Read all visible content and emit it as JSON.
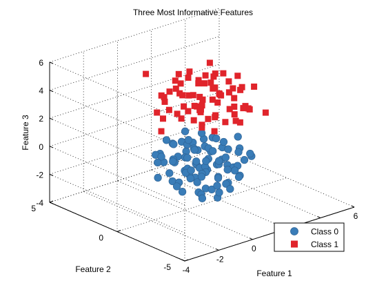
{
  "chart_data": {
    "type": "scatter",
    "title": "Three Most Informative Features",
    "xlabel": "Feature 1",
    "ylabel": "Feature 2",
    "zlabel": "Feature 3",
    "xlim": [
      -4,
      6
    ],
    "ylim": [
      -5,
      5
    ],
    "zlim": [
      -4,
      6
    ],
    "x_ticks": [
      "-4",
      "-2",
      "0",
      "2",
      "4",
      "6"
    ],
    "y_ticks": [
      "-5",
      "0",
      "5"
    ],
    "z_ticks": [
      "-4",
      "-2",
      "0",
      "2",
      "4",
      "6"
    ],
    "visible_x_tick_labels": [
      "-4",
      "-2",
      "0",
      "6"
    ],
    "grid": true,
    "legend_position": "bottom-right",
    "series": [
      {
        "name": "Class 0",
        "marker": "circle",
        "color": "#3a7db8",
        "points": [
          [
            1.2,
            0.8,
            -0.5
          ],
          [
            0.5,
            1.5,
            -1.2
          ],
          [
            2.0,
            -0.5,
            -0.8
          ],
          [
            1.6,
            1.2,
            -1.8
          ],
          [
            0.2,
            0.2,
            -1.5
          ],
          [
            2.6,
            0.4,
            -0.3
          ],
          [
            1.0,
            -1.2,
            -1.6
          ],
          [
            1.8,
            2.1,
            -0.9
          ],
          [
            0.8,
            0.6,
            -2.3
          ],
          [
            2.3,
            -1.0,
            -1.3
          ],
          [
            -0.3,
            1.8,
            -0.7
          ],
          [
            1.4,
            -0.3,
            -0.2
          ],
          [
            3.0,
            1.0,
            -1.1
          ],
          [
            0.6,
            -0.8,
            -0.4
          ],
          [
            1.9,
            0.9,
            -2.0
          ],
          [
            1.1,
            1.9,
            -1.4
          ],
          [
            2.7,
            -0.2,
            -1.9
          ],
          [
            0.0,
            0.9,
            -0.9
          ],
          [
            1.5,
            -1.8,
            -1.0
          ],
          [
            2.2,
            0.3,
            -2.6
          ],
          [
            0.9,
            2.5,
            -0.4
          ],
          [
            1.3,
            0.1,
            -3.0
          ],
          [
            2.9,
            1.6,
            -0.6
          ],
          [
            0.4,
            -0.4,
            -2.0
          ],
          [
            1.7,
            -0.9,
            -2.4
          ],
          [
            2.5,
            2.2,
            -1.6
          ],
          [
            -0.6,
            0.4,
            -1.3
          ],
          [
            1.0,
            1.0,
            0.2
          ],
          [
            3.3,
            0.1,
            -0.9
          ],
          [
            0.7,
            -1.5,
            -1.9
          ],
          [
            2.1,
            1.4,
            0.1
          ],
          [
            1.5,
            2.8,
            -1.0
          ],
          [
            -0.2,
            -0.7,
            -0.8
          ],
          [
            2.8,
            -1.3,
            -0.5
          ],
          [
            1.2,
            0.5,
            -3.4
          ],
          [
            0.3,
            1.3,
            -2.6
          ],
          [
            2.4,
            0.7,
            -0.1
          ],
          [
            1.8,
            -0.1,
            -1.4
          ],
          [
            0.9,
            0.3,
            -1.0
          ],
          [
            1.6,
            1.7,
            -2.8
          ],
          [
            2.0,
            2.5,
            -0.2
          ],
          [
            -0.8,
            1.0,
            -1.8
          ],
          [
            3.5,
            1.2,
            -1.5
          ],
          [
            1.1,
            -0.6,
            -2.7
          ],
          [
            0.5,
            2.2,
            -1.7
          ],
          [
            2.6,
            -0.8,
            -2.2
          ],
          [
            1.4,
            1.1,
            -0.6
          ],
          [
            0.1,
            -1.1,
            -1.2
          ],
          [
            2.2,
            1.9,
            -2.4
          ],
          [
            1.7,
            0.4,
            -0.4
          ],
          [
            0.8,
            -0.2,
            -3.1
          ],
          [
            2.9,
            0.5,
            -2.1
          ],
          [
            1.3,
            2.4,
            -2.1
          ],
          [
            -0.4,
            0.1,
            -2.2
          ],
          [
            1.9,
            -1.6,
            -1.7
          ],
          [
            2.4,
            1.1,
            -1.2
          ],
          [
            0.6,
            1.6,
            -0.2
          ],
          [
            1.0,
            -1.9,
            -0.7
          ],
          [
            3.1,
            -0.5,
            -1.4
          ],
          [
            1.5,
            0.8,
            -1.9
          ],
          [
            0.2,
            2.0,
            -1.1
          ],
          [
            2.7,
            2.0,
            -0.8
          ],
          [
            1.2,
            -0.9,
            -3.2
          ],
          [
            0.7,
            0.7,
            -1.6
          ],
          [
            2.3,
            -0.3,
            -2.8
          ],
          [
            1.8,
            1.5,
            -3.0
          ],
          [
            -0.1,
            -0.3,
            -0.1
          ],
          [
            3.6,
            0.6,
            -0.4
          ],
          [
            1.4,
            2.0,
            -0.5
          ],
          [
            0.9,
            -1.4,
            -2.5
          ],
          [
            2.0,
            0.0,
            -1.5
          ],
          [
            1.6,
            -0.5,
            -0.9
          ],
          [
            2.5,
            1.5,
            -2.7
          ],
          [
            0.4,
            0.5,
            -0.6
          ],
          [
            1.1,
            1.4,
            -2.2
          ],
          [
            2.8,
            0.8,
            -1.8
          ],
          [
            0.3,
            -0.9,
            -2.9
          ],
          [
            1.9,
            2.3,
            -1.5
          ],
          [
            1.3,
            -0.1,
            -0.8
          ],
          [
            2.2,
            -1.2,
            -0.2
          ],
          [
            0.8,
            1.2,
            -3.5
          ],
          [
            -0.5,
            1.4,
            -1.0
          ],
          [
            1.7,
            0.6,
            -2.2
          ],
          [
            2.6,
            1.8,
            -1.2
          ],
          [
            1.0,
            0.0,
            -1.8
          ],
          [
            3.2,
            -0.9,
            -1.0
          ],
          [
            0.6,
            2.6,
            -1.3
          ],
          [
            1.5,
            1.3,
            -0.3
          ],
          [
            2.1,
            -0.7,
            -3.0
          ],
          [
            0.2,
            0.7,
            -2.4
          ]
        ]
      },
      {
        "name": "Class 1",
        "marker": "square",
        "color": "#e0242b",
        "points": [
          [
            1.5,
            1.0,
            2.4
          ],
          [
            0.8,
            0.3,
            3.0
          ],
          [
            2.2,
            1.5,
            2.0
          ],
          [
            1.0,
            -1.0,
            2.8
          ],
          [
            2.6,
            0.0,
            3.4
          ],
          [
            0.5,
            1.8,
            2.2
          ],
          [
            1.9,
            -0.6,
            1.8
          ],
          [
            3.0,
            1.2,
            2.6
          ],
          [
            1.3,
            2.3,
            3.2
          ],
          [
            0.2,
            -0.4,
            2.5
          ],
          [
            2.4,
            -1.3,
            2.9
          ],
          [
            1.7,
            0.7,
            4.1
          ],
          [
            0.9,
            1.4,
            1.6
          ],
          [
            2.8,
            2.0,
            3.7
          ],
          [
            1.2,
            -1.8,
            3.5
          ],
          [
            3.3,
            0.5,
            1.9
          ],
          [
            0.4,
            0.9,
            3.8
          ],
          [
            2.0,
            2.7,
            2.3
          ],
          [
            1.6,
            -0.2,
            2.1
          ],
          [
            2.5,
            0.9,
            4.4
          ],
          [
            -0.3,
            0.2,
            2.9
          ],
          [
            1.1,
            1.1,
            3.3
          ],
          [
            3.1,
            -0.8,
            2.4
          ],
          [
            0.7,
            -1.3,
            1.9
          ],
          [
            2.3,
            1.8,
            1.5
          ],
          [
            1.4,
            2.9,
            2.7
          ],
          [
            1.8,
            0.2,
            3.9
          ],
          [
            0.0,
            1.5,
            3.1
          ],
          [
            2.9,
            1.6,
            2.1
          ],
          [
            1.2,
            0.5,
            4.6
          ],
          [
            2.1,
            -1.0,
            3.6
          ],
          [
            0.6,
            2.5,
            2.9
          ],
          [
            3.5,
            0.3,
            3.1
          ],
          [
            1.5,
            -2.2,
            2.6
          ],
          [
            2.7,
            2.4,
            3.0
          ],
          [
            0.3,
            -0.8,
            3.4
          ],
          [
            1.9,
            1.3,
            2.8
          ],
          [
            1.0,
            0.0,
            1.7
          ],
          [
            2.4,
            0.6,
            2.5
          ],
          [
            1.7,
            1.9,
            4.0
          ],
          [
            -0.5,
            1.0,
            2.3
          ],
          [
            3.2,
            1.9,
            3.5
          ],
          [
            0.8,
            -0.3,
            3.7
          ],
          [
            2.0,
            0.8,
            1.4
          ],
          [
            1.3,
            -0.9,
            4.2
          ],
          [
            2.6,
            -0.4,
            2.0
          ],
          [
            0.5,
            0.4,
            2.7
          ],
          [
            1.6,
            2.1,
            1.9
          ],
          [
            3.7,
            1.1,
            2.8
          ],
          [
            1.1,
            1.7,
            3.9
          ],
          [
            2.2,
            0.1,
            3.3
          ],
          [
            0.1,
            2.2,
            2.0
          ],
          [
            1.8,
            -1.5,
            2.3
          ],
          [
            2.9,
            0.4,
            3.9
          ],
          [
            1.4,
            0.6,
            2.2
          ],
          [
            0.7,
            1.6,
            4.3
          ],
          [
            3.4,
            -0.2,
            2.2
          ],
          [
            1.0,
            2.8,
            2.5
          ],
          [
            2.3,
            -1.9,
            3.1
          ],
          [
            1.6,
            1.4,
            3.0
          ],
          [
            4.0,
            0.8,
            2.9
          ],
          [
            -0.2,
            -1.5,
            2.6
          ],
          [
            2.1,
            3.1,
            3.6
          ],
          [
            1.2,
            -0.4,
            4.8
          ],
          [
            3.6,
            2.3,
            2.4
          ],
          [
            0.9,
            0.8,
            5.2
          ],
          [
            2.5,
            1.3,
            5.0
          ],
          [
            1.7,
            -0.7,
            5.4
          ],
          [
            4.3,
            1.5,
            3.3
          ],
          [
            -1.0,
            0.5,
            1.8
          ],
          [
            3.8,
            -1.2,
            2.0
          ],
          [
            0.0,
            2.9,
            4.5
          ],
          [
            2.8,
            -1.6,
            4.4
          ]
        ]
      }
    ]
  }
}
